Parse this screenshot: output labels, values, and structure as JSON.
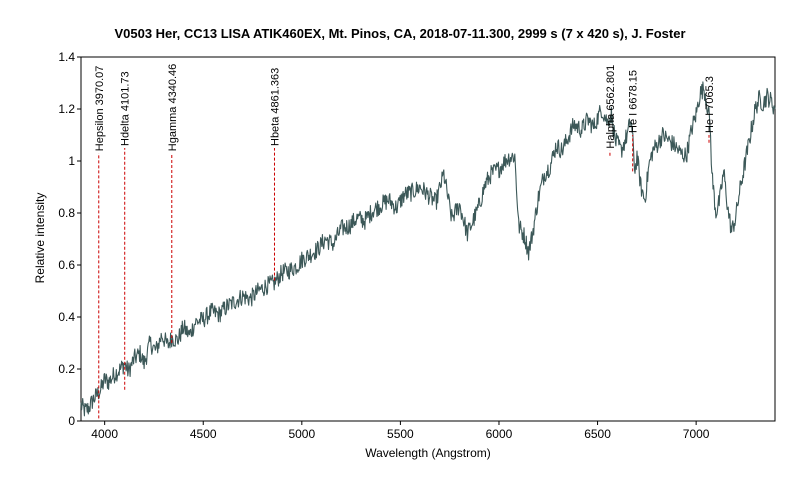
{
  "chart_data": {
    "type": "line",
    "title": "V0503 Her, CC13 LISA ATIK460EX, Mt. Pinos, CA, 2018-07-11.300, 2999 s (7 x 420 s), J. Foster",
    "xlabel": "Wavelength (Angstrom)",
    "ylabel": "Relative intensity",
    "xlim": [
      3880,
      7400
    ],
    "ylim": [
      0,
      1.4
    ],
    "x_ticks": [
      4000,
      4500,
      5000,
      5500,
      6000,
      6500,
      7000
    ],
    "y_ticks": [
      0,
      0.2,
      0.4,
      0.6,
      0.8,
      1,
      1.2,
      1.4
    ],
    "grid": false,
    "series_color": "#3c5858",
    "marker_color": "#cc0000",
    "series": [
      {
        "x": [
          3880,
          3900,
          3920,
          3940,
          3960,
          3980,
          4000,
          4020,
          4050,
          4080,
          4100,
          4120,
          4150,
          4180,
          4200,
          4230,
          4260,
          4290,
          4320,
          4340,
          4370,
          4400,
          4430,
          4460,
          4500,
          4540,
          4580,
          4620,
          4660,
          4700,
          4740,
          4780,
          4820,
          4860,
          4900,
          4940,
          4980,
          5000,
          5040,
          5080,
          5120,
          5160,
          5200,
          5240,
          5280,
          5320,
          5360,
          5400,
          5440,
          5480,
          5520,
          5560,
          5600,
          5640,
          5680,
          5720,
          5760,
          5800,
          5840,
          5880,
          5900,
          5930,
          5960,
          6000,
          6040,
          6080,
          6100,
          6130,
          6150,
          6170,
          6200,
          6230,
          6260,
          6290,
          6320,
          6350,
          6380,
          6420,
          6450,
          6480,
          6520,
          6550,
          6570,
          6590,
          6620,
          6650,
          6670,
          6690,
          6700,
          6720,
          6740,
          6760,
          6780,
          6800,
          6830,
          6860,
          6890,
          6920,
          6950,
          6980,
          7000,
          7020,
          7040,
          7055,
          7070,
          7080,
          7100,
          7120,
          7140,
          7160,
          7180,
          7200,
          7220,
          7240,
          7260,
          7280,
          7300,
          7320,
          7340,
          7360,
          7380,
          7400
        ],
        "y": [
          0.06,
          0.04,
          0.05,
          0.08,
          0.1,
          0.12,
          0.16,
          0.15,
          0.18,
          0.2,
          0.22,
          0.19,
          0.24,
          0.26,
          0.22,
          0.3,
          0.27,
          0.33,
          0.29,
          0.32,
          0.31,
          0.36,
          0.33,
          0.38,
          0.39,
          0.42,
          0.41,
          0.44,
          0.46,
          0.48,
          0.47,
          0.5,
          0.52,
          0.53,
          0.57,
          0.58,
          0.6,
          0.62,
          0.64,
          0.66,
          0.7,
          0.68,
          0.74,
          0.75,
          0.78,
          0.77,
          0.81,
          0.83,
          0.85,
          0.82,
          0.87,
          0.88,
          0.9,
          0.87,
          0.84,
          0.95,
          0.78,
          0.83,
          0.72,
          0.79,
          0.83,
          0.91,
          0.95,
          0.97,
          1.01,
          1.02,
          0.75,
          0.71,
          0.65,
          0.72,
          0.86,
          0.95,
          0.98,
          1.06,
          1.04,
          1.09,
          1.14,
          1.12,
          1.16,
          1.13,
          1.2,
          1.15,
          1.18,
          1.08,
          1.04,
          1.1,
          1.16,
          0.96,
          1.02,
          0.9,
          0.85,
          0.98,
          1.04,
          1.06,
          1.1,
          1.08,
          1.06,
          1.03,
          1.02,
          1.13,
          1.18,
          1.26,
          1.28,
          1.22,
          1.15,
          0.95,
          0.8,
          0.85,
          0.96,
          0.82,
          0.73,
          0.78,
          0.88,
          0.96,
          1.04,
          1.12,
          1.2,
          1.24,
          1.22,
          1.25,
          1.23,
          1.2
        ]
      }
    ],
    "lines": [
      {
        "label": "Hepsilon 3970.07",
        "x": 3970.07,
        "y_bottom": 0.01,
        "y_top": 1.03
      },
      {
        "label": "Hdelta 4101.73",
        "x": 4101.73,
        "y_bottom": 0.12,
        "y_top": 1.05
      },
      {
        "label": "Hgamma 4340.46",
        "x": 4340.46,
        "y_bottom": 0.3,
        "y_top": 1.03
      },
      {
        "label": "Hbeta 4861.363",
        "x": 4861.363,
        "y_bottom": 0.54,
        "y_top": 1.05
      },
      {
        "label": "Halpha 6562.801",
        "x": 6562.801,
        "y_bottom": 1.02,
        "y_top": 1.04
      },
      {
        "label": "He I 6678.15",
        "x": 6678.15,
        "y_bottom": 0.96,
        "y_top": 1.1
      },
      {
        "label": "He I 7065.3",
        "x": 7065.3,
        "y_bottom": 1.07,
        "y_top": 1.1
      }
    ]
  }
}
